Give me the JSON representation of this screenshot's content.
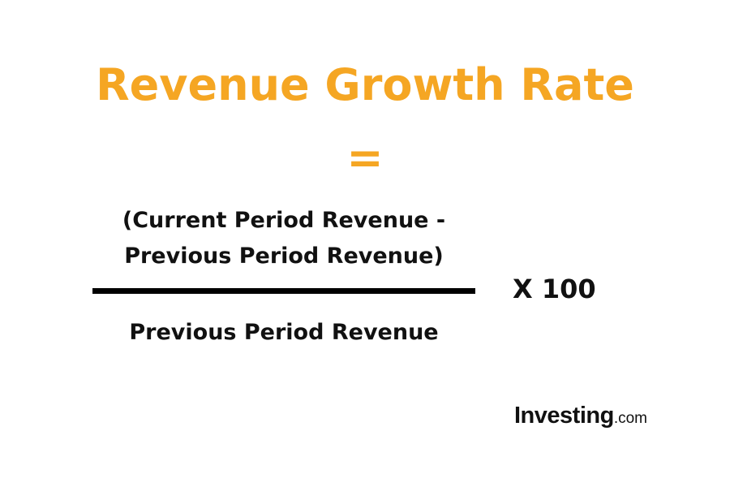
{
  "colors": {
    "accent": "#F5A623",
    "text": "#111111",
    "background": "#FFFFFF"
  },
  "formula": {
    "title": "Revenue Growth Rate",
    "equals": "=",
    "numerator_line1": "(Current Period Revenue -",
    "numerator_line2": "Previous Period Revenue)",
    "denominator": "Previous Period Revenue",
    "multiplier": "X 100"
  },
  "logo": {
    "brand": "Investing",
    "tld": ".com"
  }
}
